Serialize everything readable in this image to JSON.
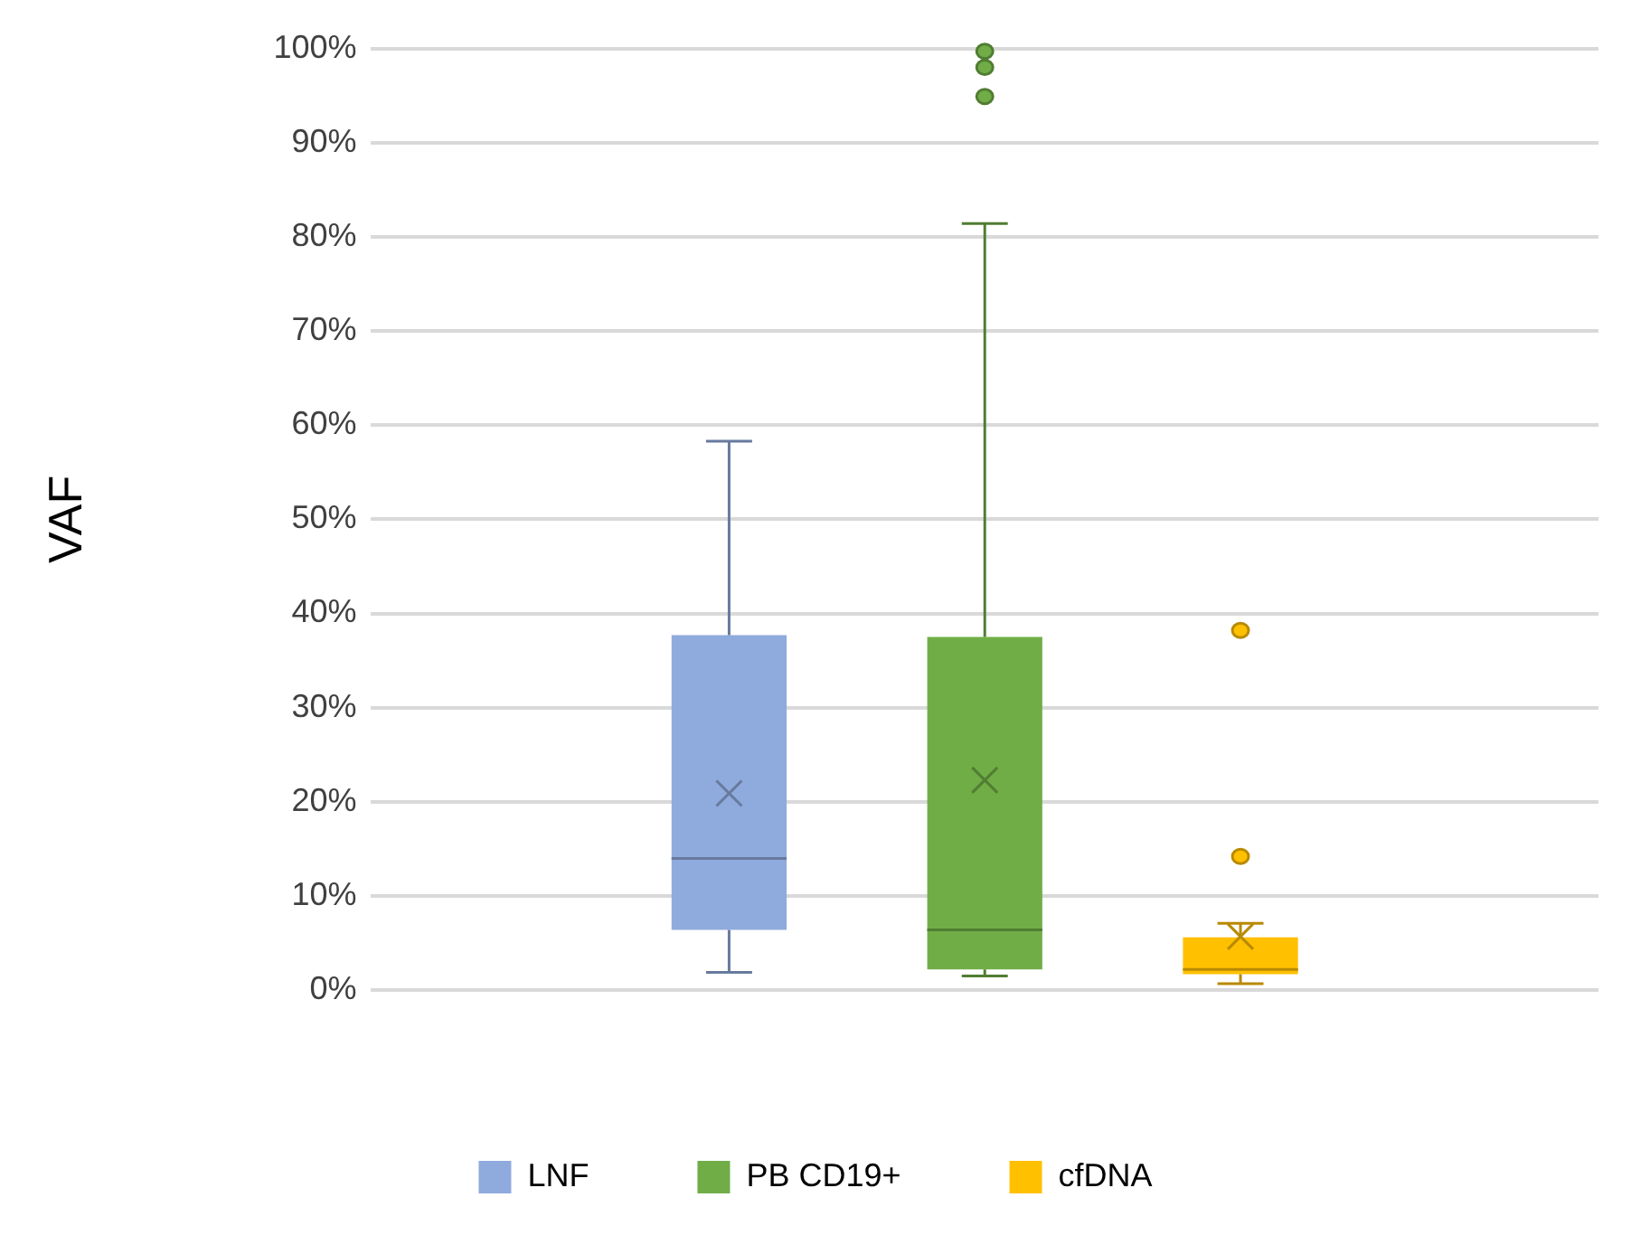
{
  "chart_data": {
    "type": "box",
    "ylabel": "VAF",
    "categories": [
      null
    ],
    "ylim": [
      0,
      100
    ],
    "yticks": [
      {
        "value": 0,
        "label": "0%"
      },
      {
        "value": 10,
        "label": "10%"
      },
      {
        "value": 20,
        "label": "20%"
      },
      {
        "value": 30,
        "label": "30%"
      },
      {
        "value": 40,
        "label": "40%"
      },
      {
        "value": 50,
        "label": "50%"
      },
      {
        "value": 60,
        "label": "60%"
      },
      {
        "value": 70,
        "label": "70%"
      },
      {
        "value": 80,
        "label": "80%"
      },
      {
        "value": 90,
        "label": "90%"
      },
      {
        "value": 100,
        "label": "100%"
      }
    ],
    "grid": "y",
    "legend": "bottom",
    "series": [
      {
        "name": "LNF",
        "color": "#8faadc",
        "boxes": [
          {
            "low": 1.9,
            "q1": 6.4,
            "median": 14.0,
            "q3": 37.7,
            "high": 58.3,
            "mean": 20.9
          }
        ]
      },
      {
        "name": "PB CD19+",
        "color": "#70ad47",
        "boxes": [
          {
            "low": 1.5,
            "q1": 2.2,
            "median": 6.4,
            "q3": 37.5,
            "high": 81.4,
            "mean": 22.3,
            "outliers": [
              94.9,
              98.0,
              99.7
            ]
          }
        ]
      },
      {
        "name": "cfDNA",
        "color": "#ffc000",
        "boxes": [
          {
            "low": 0.7,
            "q1": 1.7,
            "median": 2.2,
            "q3": 5.6,
            "high": 7.1,
            "mean": 5.7,
            "outliers": [
              14.2,
              38.2
            ]
          }
        ]
      }
    ]
  }
}
